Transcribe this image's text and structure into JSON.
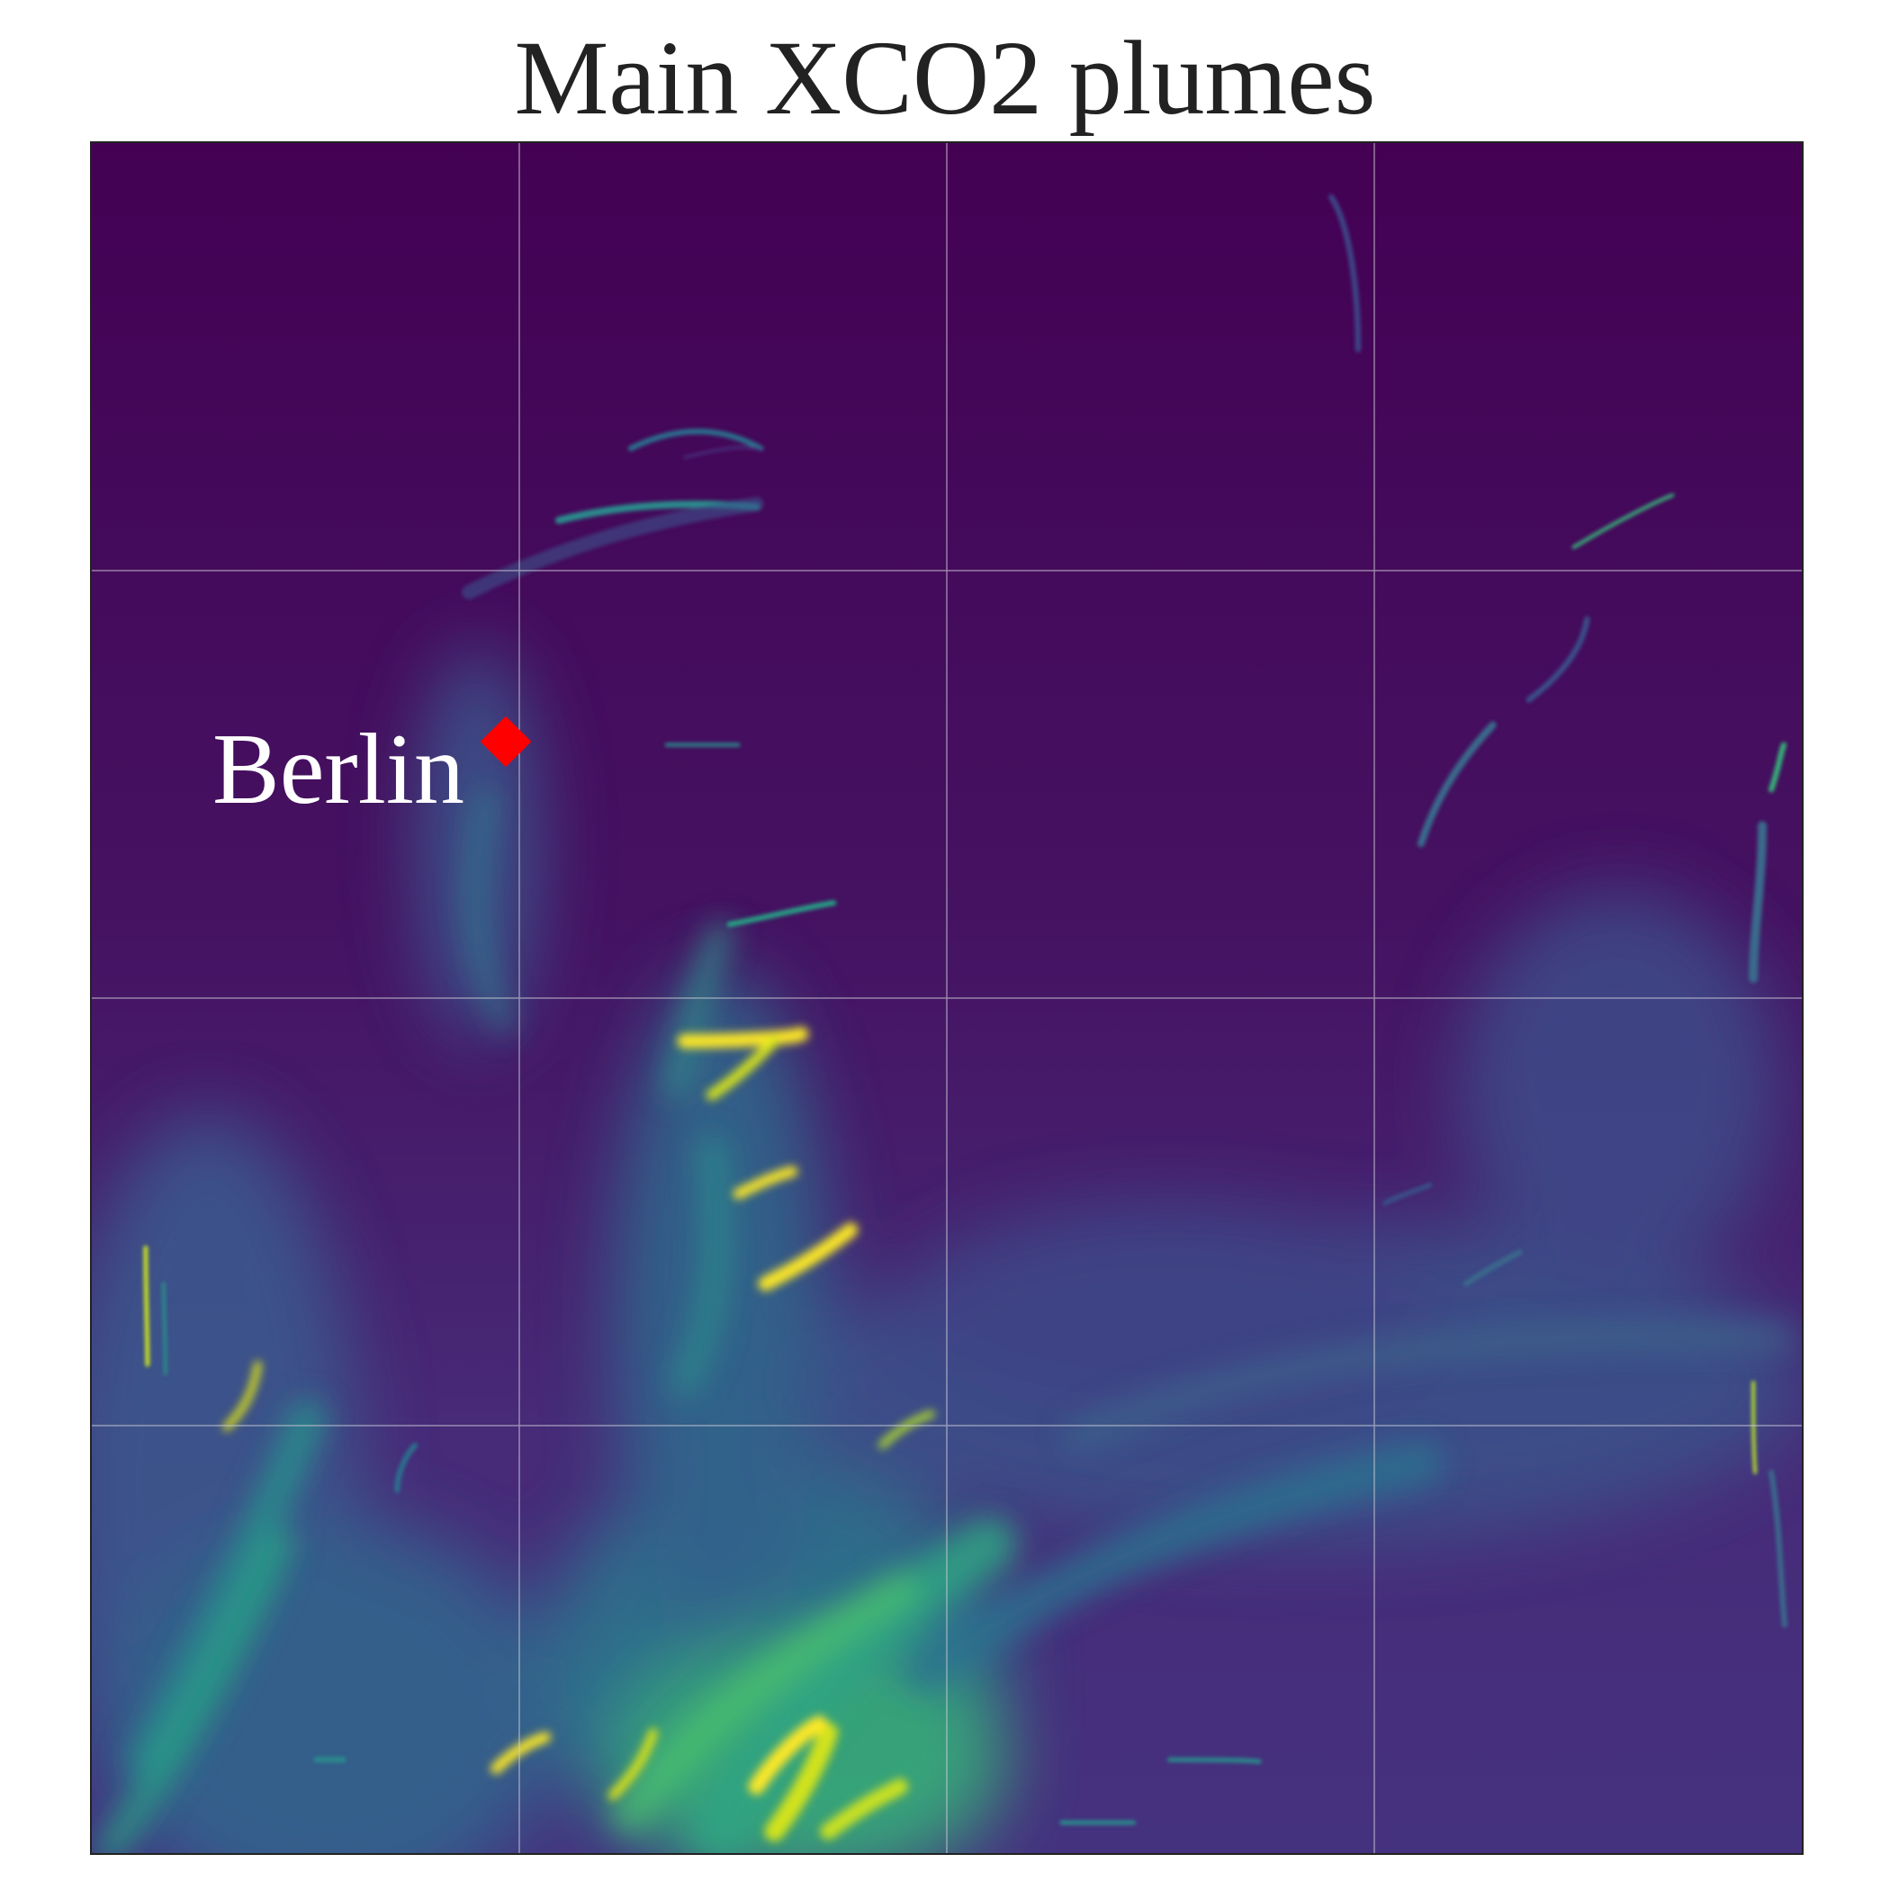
{
  "title": "Main XCO2 plumes",
  "map": {
    "colormap": "viridis",
    "colors": {
      "background_low": "#440154",
      "background_mid": "#472d7b",
      "teal": "#21918c",
      "green": "#5ec962",
      "yellow": "#fde725",
      "grid": "#d0d0d8",
      "marker": "#ff0000"
    },
    "grid": true,
    "axes_ticks": false
  },
  "city": {
    "name": "Berlin",
    "marker_shape": "diamond",
    "marker_color": "#ff0000"
  }
}
